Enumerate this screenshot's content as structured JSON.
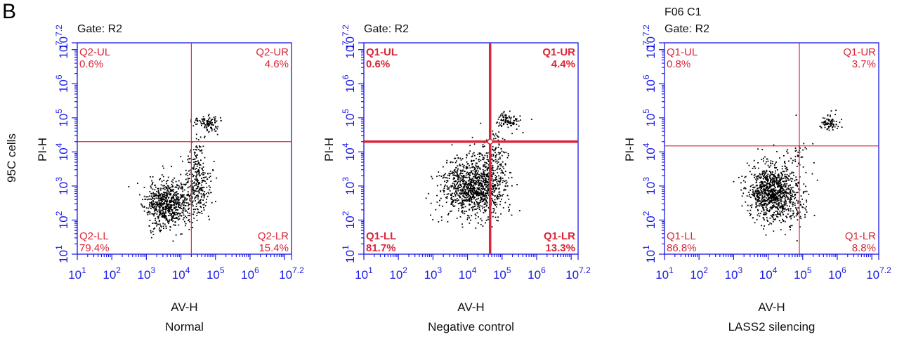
{
  "panel_letter": "B",
  "row_label": "95C cells",
  "colors": {
    "axis": "#1a1ae6",
    "quadrant": "#d92638",
    "points": "#000000",
    "text": "#111111"
  },
  "chart_data": [
    {
      "type": "scatter",
      "title": "Gate: R2",
      "header_extra": "",
      "xlabel": "AV-H",
      "ylabel": "PI-H",
      "caption": "Normal",
      "scale": "log",
      "xlim": [
        10,
        15848932
      ],
      "ylim": [
        10,
        15848932
      ],
      "x_ticks": [
        {
          "base": "10",
          "exp": "1"
        },
        {
          "base": "10",
          "exp": "2"
        },
        {
          "base": "10",
          "exp": "3"
        },
        {
          "base": "10",
          "exp": "4"
        },
        {
          "base": "10",
          "exp": "5"
        },
        {
          "base": "10",
          "exp": "6"
        },
        {
          "base": "10",
          "exp": "7.2"
        }
      ],
      "y_ticks": [
        {
          "base": "10",
          "exp": "1"
        },
        {
          "base": "10",
          "exp": "2"
        },
        {
          "base": "10",
          "exp": "3"
        },
        {
          "base": "10",
          "exp": "4"
        },
        {
          "base": "10",
          "exp": "5"
        },
        {
          "base": "10",
          "exp": "6"
        },
        {
          "base": "10",
          "exp": "7"
        },
        {
          "base": "10",
          "exp": "7.2"
        }
      ],
      "gate": {
        "x": 20000,
        "y": 20000
      },
      "quadrant_line_weight": "thin",
      "quadrants": {
        "UL": {
          "name": "Q2-UL",
          "percent": "0.6%"
        },
        "UR": {
          "name": "Q2-UR",
          "percent": "4.6%"
        },
        "LL": {
          "name": "Q2-LL",
          "percent": "79.4%"
        },
        "LR": {
          "name": "Q2-LR",
          "percent": "15.4%"
        }
      },
      "clusters": [
        {
          "x": 4000,
          "y": 300,
          "sx": 0.32,
          "sy": 0.35,
          "n": 700
        },
        {
          "x": 30000,
          "y": 1200,
          "sx": 0.2,
          "sy": 0.45,
          "n": 260
        },
        {
          "x": 60000,
          "y": 70000,
          "sx": 0.18,
          "sy": 0.12,
          "n": 110
        },
        {
          "x": 25000,
          "y": 8000,
          "sx": 0.1,
          "sy": 0.35,
          "n": 40
        }
      ],
      "seed": 11
    },
    {
      "type": "scatter",
      "title": "Gate: R2",
      "header_extra": "",
      "xlabel": "AV-H",
      "ylabel": "PI-H",
      "caption": "Negative control",
      "scale": "log",
      "xlim": [
        10,
        15848932
      ],
      "ylim": [
        10,
        15848932
      ],
      "x_ticks": [
        {
          "base": "10",
          "exp": "1"
        },
        {
          "base": "10",
          "exp": "2"
        },
        {
          "base": "10",
          "exp": "3"
        },
        {
          "base": "10",
          "exp": "4"
        },
        {
          "base": "10",
          "exp": "5"
        },
        {
          "base": "10",
          "exp": "6"
        },
        {
          "base": "10",
          "exp": "7.2"
        }
      ],
      "y_ticks": [
        {
          "base": "10",
          "exp": "1"
        },
        {
          "base": "10",
          "exp": "2"
        },
        {
          "base": "10",
          "exp": "3"
        },
        {
          "base": "10",
          "exp": "4"
        },
        {
          "base": "10",
          "exp": "5"
        },
        {
          "base": "10",
          "exp": "6"
        },
        {
          "base": "10",
          "exp": "7"
        },
        {
          "base": "10",
          "exp": "7.2"
        }
      ],
      "gate": {
        "x": 45000,
        "y": 20000
      },
      "quadrant_line_weight": "thick",
      "quadrants": {
        "UL": {
          "name": "Q1-UL",
          "percent": "0.6%"
        },
        "UR": {
          "name": "Q1-UR",
          "percent": "4.4%"
        },
        "LL": {
          "name": "Q1-LL",
          "percent": "81.7%"
        },
        "LR": {
          "name": "Q1-LR",
          "percent": "13.3%"
        }
      },
      "clusters": [
        {
          "x": 12000,
          "y": 900,
          "sx": 0.42,
          "sy": 0.42,
          "n": 900
        },
        {
          "x": 45000,
          "y": 1500,
          "sx": 0.28,
          "sy": 0.55,
          "n": 250
        },
        {
          "x": 150000,
          "y": 80000,
          "sx": 0.18,
          "sy": 0.12,
          "n": 90
        },
        {
          "x": 60000,
          "y": 15000,
          "sx": 0.2,
          "sy": 0.3,
          "n": 60
        }
      ],
      "seed": 23
    },
    {
      "type": "scatter",
      "title": "Gate: R2",
      "header_extra": "F06 C1",
      "xlabel": "AV-H",
      "ylabel": "PI-H",
      "caption": "LASS2 silencing",
      "scale": "log",
      "xlim": [
        10,
        15848932
      ],
      "ylim": [
        10,
        15848932
      ],
      "x_ticks": [
        {
          "base": "10",
          "exp": "1"
        },
        {
          "base": "10",
          "exp": "2"
        },
        {
          "base": "10",
          "exp": "3"
        },
        {
          "base": "10",
          "exp": "4"
        },
        {
          "base": "10",
          "exp": "5"
        },
        {
          "base": "10",
          "exp": "6"
        },
        {
          "base": "10",
          "exp": "7.2"
        }
      ],
      "y_ticks": [
        {
          "base": "10",
          "exp": "1"
        },
        {
          "base": "10",
          "exp": "2"
        },
        {
          "base": "10",
          "exp": "3"
        },
        {
          "base": "10",
          "exp": "4"
        },
        {
          "base": "10",
          "exp": "5"
        },
        {
          "base": "10",
          "exp": "6"
        },
        {
          "base": "10",
          "exp": "7"
        },
        {
          "base": "10",
          "exp": "7.2"
        }
      ],
      "gate": {
        "x": 80000,
        "y": 15000
      },
      "quadrant_line_weight": "thin",
      "quadrants": {
        "UL": {
          "name": "Q1-UL",
          "percent": "0.8%"
        },
        "UR": {
          "name": "Q1-UR",
          "percent": "3.7%"
        },
        "LL": {
          "name": "Q1-LL",
          "percent": "86.8%"
        },
        "LR": {
          "name": "Q1-LR",
          "percent": "8.8%"
        }
      },
      "clusters": [
        {
          "x": 12000,
          "y": 700,
          "sx": 0.32,
          "sy": 0.4,
          "n": 900
        },
        {
          "x": 50000,
          "y": 300,
          "sx": 0.28,
          "sy": 0.45,
          "n": 130
        },
        {
          "x": 600000,
          "y": 70000,
          "sx": 0.15,
          "sy": 0.12,
          "n": 80
        },
        {
          "x": 80000,
          "y": 8000,
          "sx": 0.25,
          "sy": 0.35,
          "n": 40
        }
      ],
      "seed": 37
    }
  ]
}
